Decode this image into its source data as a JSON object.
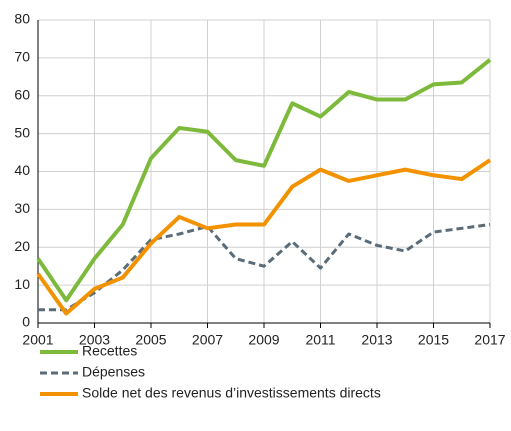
{
  "chart_data": {
    "type": "line",
    "x": [
      2001,
      2002,
      2003,
      2004,
      2005,
      2006,
      2007,
      2008,
      2009,
      2010,
      2011,
      2012,
      2013,
      2014,
      2015,
      2016,
      2017
    ],
    "series": [
      {
        "name": "Recettes",
        "color": "#7dba3c",
        "dash": false,
        "values": [
          17,
          6,
          17,
          26,
          43.5,
          51.5,
          50.5,
          43,
          41.5,
          58,
          54.5,
          61,
          59,
          59,
          63,
          63.5,
          69.5
        ]
      },
      {
        "name": "Dépenses",
        "color": "#5b6b78",
        "dash": true,
        "values": [
          3.5,
          3.5,
          8,
          14,
          22,
          23.5,
          25.5,
          17,
          15,
          21.5,
          14.5,
          23.5,
          20.5,
          19,
          24,
          25,
          26
        ]
      },
      {
        "name": "Solde net des revenus d’investissements directs",
        "color": "#f39200",
        "dash": false,
        "values": [
          13,
          2.5,
          9,
          12,
          21,
          28,
          25,
          26,
          26,
          36,
          40.5,
          37.5,
          39,
          40.5,
          39,
          38,
          43
        ]
      }
    ],
    "xlim": [
      2001,
      2017
    ],
    "xticks": [
      2001,
      2003,
      2005,
      2007,
      2009,
      2011,
      2013,
      2015,
      2017
    ],
    "ylim": [
      0,
      80
    ],
    "yticks": [
      0,
      10,
      20,
      30,
      40,
      50,
      60,
      70,
      80
    ],
    "grid": true,
    "legend": "bottom"
  }
}
